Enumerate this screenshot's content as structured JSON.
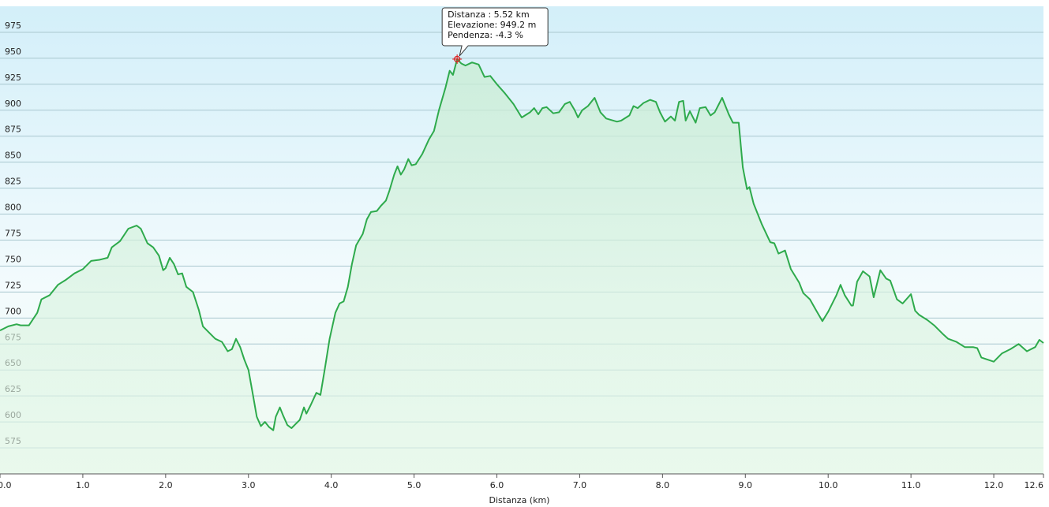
{
  "chart_data": {
    "type": "area",
    "x_label": "Distanza  (km)",
    "color": "#2eaa4c",
    "xlim": [
      0,
      12.6
    ],
    "ylim": [
      550,
      1000
    ],
    "grid": true,
    "xticks": [
      {
        "value": 0,
        "label": "0.0"
      },
      {
        "value": 1,
        "label": "1.0"
      },
      {
        "value": 2,
        "label": "2.0"
      },
      {
        "value": 3,
        "label": "3.0"
      },
      {
        "value": 4,
        "label": "4.0"
      },
      {
        "value": 5,
        "label": "5.0"
      },
      {
        "value": 6,
        "label": "6.0"
      },
      {
        "value": 7,
        "label": "7.0"
      },
      {
        "value": 8,
        "label": "8.0"
      },
      {
        "value": 9,
        "label": "9.0"
      },
      {
        "value": 10,
        "label": "10.0"
      },
      {
        "value": 11,
        "label": "11.0"
      },
      {
        "value": 12,
        "label": "12.0"
      },
      12.6
    ],
    "yticks": [
      575,
      600,
      625,
      650,
      675,
      700,
      725,
      750,
      775,
      800,
      825,
      850,
      875,
      900,
      925,
      950,
      975
    ],
    "x": [
      0.0,
      0.1,
      0.2,
      0.25,
      0.35,
      0.45,
      0.5,
      0.6,
      0.7,
      0.8,
      0.9,
      1.0,
      1.1,
      1.2,
      1.3,
      1.35,
      1.45,
      1.55,
      1.65,
      1.7,
      1.78,
      1.85,
      1.92,
      1.97,
      2.0,
      2.05,
      2.1,
      2.15,
      2.2,
      2.25,
      2.33,
      2.4,
      2.45,
      2.55,
      2.6,
      2.68,
      2.75,
      2.8,
      2.85,
      2.9,
      2.95,
      3.0,
      3.05,
      3.1,
      3.15,
      3.2,
      3.25,
      3.3,
      3.33,
      3.38,
      3.42,
      3.47,
      3.52,
      3.57,
      3.62,
      3.67,
      3.7,
      3.75,
      3.82,
      3.87,
      3.92,
      3.98,
      4.05,
      4.1,
      4.15,
      4.2,
      4.25,
      4.3,
      4.38,
      4.43,
      4.48,
      4.55,
      4.6,
      4.66,
      4.7,
      4.76,
      4.8,
      4.84,
      4.88,
      4.93,
      4.97,
      5.02,
      5.1,
      5.18,
      5.24,
      5.3,
      5.38,
      5.43,
      5.47,
      5.52,
      5.57,
      5.62,
      5.7,
      5.78,
      5.85,
      5.92,
      6.0,
      6.1,
      6.2,
      6.3,
      6.4,
      6.45,
      6.5,
      6.55,
      6.6,
      6.68,
      6.75,
      6.82,
      6.88,
      6.94,
      6.98,
      7.03,
      7.1,
      7.18,
      7.25,
      7.32,
      7.45,
      7.5,
      7.6,
      7.65,
      7.7,
      7.77,
      7.85,
      7.92,
      7.97,
      8.03,
      8.1,
      8.15,
      8.2,
      8.25,
      8.28,
      8.33,
      8.4,
      8.45,
      8.52,
      8.58,
      8.63,
      8.72,
      8.8,
      8.85,
      8.92,
      8.97,
      9.02,
      9.05,
      9.1,
      9.2,
      9.3,
      9.35,
      9.4,
      9.48,
      9.55,
      9.65,
      9.7,
      9.78,
      9.85,
      9.93,
      10.0,
      10.1,
      10.15,
      10.2,
      10.28,
      10.3,
      10.35,
      10.42,
      10.5,
      10.55,
      10.63,
      10.7,
      10.75,
      10.83,
      10.9,
      11.0,
      11.05,
      11.1,
      11.2,
      11.28,
      11.38,
      11.45,
      11.55,
      11.65,
      11.75,
      11.8,
      11.85,
      12.0,
      12.1,
      12.2,
      12.3,
      12.4,
      12.5,
      12.55,
      12.6
    ],
    "values": [
      688,
      692,
      694,
      693,
      693,
      705,
      718,
      722,
      732,
      737,
      743,
      747,
      755,
      756,
      758,
      768,
      774,
      786,
      789,
      786,
      772,
      768,
      760,
      746,
      748,
      758,
      752,
      742,
      743,
      730,
      725,
      708,
      692,
      684,
      680,
      677,
      668,
      670,
      680,
      672,
      660,
      650,
      628,
      605,
      596,
      600,
      595,
      592,
      605,
      614,
      606,
      597,
      594,
      598,
      602,
      614,
      608,
      616,
      628,
      626,
      650,
      680,
      705,
      714,
      716,
      730,
      752,
      770,
      781,
      795,
      802,
      803,
      808,
      813,
      822,
      838,
      846,
      838,
      843,
      853,
      847,
      848,
      858,
      872,
      880,
      900,
      922,
      938,
      934,
      949.2,
      945,
      943,
      946,
      944,
      932,
      933,
      925,
      916,
      906,
      893,
      898,
      902,
      896,
      902,
      903,
      897,
      898,
      906,
      908,
      900,
      893,
      900,
      904,
      912,
      898,
      892,
      889,
      890,
      895,
      904,
      902,
      907,
      910,
      908,
      898,
      889,
      894,
      890,
      908,
      909,
      890,
      899,
      888,
      902,
      903,
      895,
      898,
      912,
      896,
      888,
      888,
      845,
      824,
      826,
      810,
      790,
      773,
      772,
      762,
      765,
      747,
      734,
      724,
      718,
      708,
      697,
      706,
      722,
      732,
      722,
      712,
      712,
      735,
      745,
      740,
      720,
      746,
      738,
      736,
      718,
      714,
      723,
      707,
      703,
      698,
      693,
      685,
      680,
      677,
      672,
      672,
      671,
      662,
      658,
      666,
      670,
      675,
      668,
      672,
      679,
      676
    ],
    "marker": {
      "x": 5.52,
      "y": 949.2
    },
    "tooltip": [
      "Distanza : 5.52 km",
      "Elevazione: 949.2 m",
      "Pendenza: -4.3 %"
    ]
  }
}
